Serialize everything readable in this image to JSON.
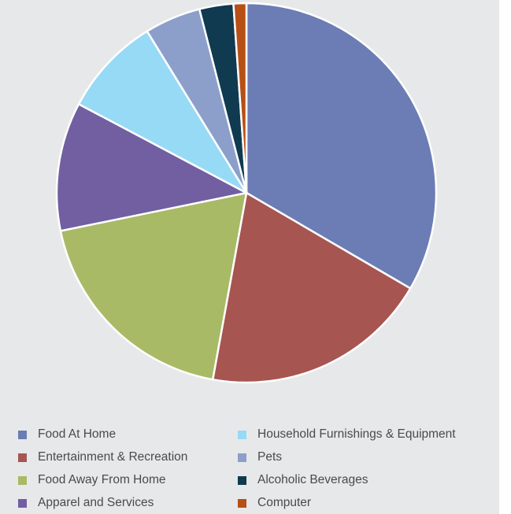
{
  "chart_data": {
    "type": "pie",
    "title": "",
    "series": [
      {
        "label": "Food At Home",
        "value": 33.5,
        "color": "#6b7db4"
      },
      {
        "label": "Entertainment & Recreation",
        "value": 19.5,
        "color": "#a75551"
      },
      {
        "label": "Food Away From Home",
        "value": 19.0,
        "color": "#a8ba66"
      },
      {
        "label": "Apparel and Services",
        "value": 11.0,
        "color": "#715fa1"
      },
      {
        "label": "Household Furnishings & Equipment",
        "value": 8.5,
        "color": "#97daf5"
      },
      {
        "label": "Pets",
        "value": 4.8,
        "color": "#8c9fcb"
      },
      {
        "label": "Alcoholic Beverages",
        "value": 2.9,
        "color": "#0f3a4f"
      },
      {
        "label": "Computer",
        "value": 1.1,
        "color": "#b65016"
      }
    ],
    "legend_placement": "bottom"
  }
}
